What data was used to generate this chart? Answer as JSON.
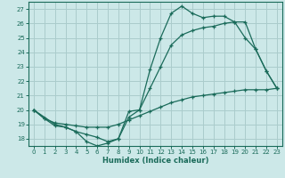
{
  "xlabel": "Humidex (Indice chaleur)",
  "bg_color": "#cce8e8",
  "grid_color": "#aacccc",
  "line_color": "#1a6b5a",
  "xlim": [
    -0.5,
    23.5
  ],
  "ylim": [
    17.5,
    27.5
  ],
  "yticks": [
    18,
    19,
    20,
    21,
    22,
    23,
    24,
    25,
    26,
    27
  ],
  "xticks": [
    0,
    1,
    2,
    3,
    4,
    5,
    6,
    7,
    8,
    9,
    10,
    11,
    12,
    13,
    14,
    15,
    16,
    17,
    18,
    19,
    20,
    21,
    22,
    23
  ],
  "line1_x": [
    0,
    1,
    2,
    3,
    4,
    5,
    6,
    7,
    8,
    9,
    10,
    11,
    12,
    13,
    14,
    15,
    16,
    17,
    18,
    19,
    20,
    21,
    22,
    23
  ],
  "line1_y": [
    20.0,
    19.4,
    18.9,
    18.8,
    18.5,
    17.8,
    17.5,
    17.7,
    18.0,
    19.9,
    20.0,
    22.8,
    25.0,
    26.7,
    27.2,
    26.7,
    26.4,
    26.5,
    26.5,
    26.1,
    25.0,
    24.2,
    22.7,
    21.5
  ],
  "line2_x": [
    0,
    2,
    3,
    4,
    5,
    6,
    7,
    8,
    9,
    10,
    11,
    12,
    13,
    14,
    15,
    16,
    17,
    18,
    19,
    20,
    21,
    22,
    23
  ],
  "line2_y": [
    20.0,
    19.0,
    18.8,
    18.5,
    18.3,
    18.1,
    17.8,
    18.0,
    19.5,
    20.0,
    21.5,
    23.0,
    24.5,
    25.2,
    25.5,
    25.7,
    25.8,
    26.0,
    26.1,
    26.1,
    24.2,
    22.7,
    21.5
  ],
  "line3_x": [
    0,
    1,
    2,
    3,
    4,
    5,
    6,
    7,
    8,
    9,
    10,
    11,
    12,
    13,
    14,
    15,
    16,
    17,
    18,
    19,
    20,
    21,
    22,
    23
  ],
  "line3_y": [
    20.0,
    19.4,
    19.1,
    19.0,
    18.9,
    18.8,
    18.8,
    18.8,
    19.0,
    19.3,
    19.6,
    19.9,
    20.2,
    20.5,
    20.7,
    20.9,
    21.0,
    21.1,
    21.2,
    21.3,
    21.4,
    21.4,
    21.4,
    21.5
  ],
  "xlabel_fontsize": 6,
  "tick_fontsize": 5
}
